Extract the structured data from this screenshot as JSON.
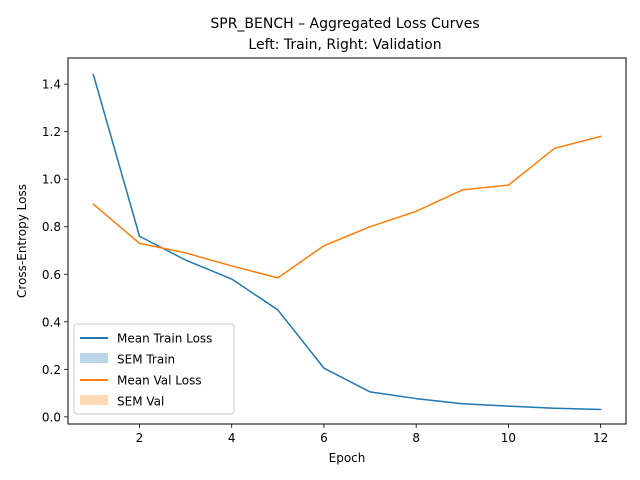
{
  "chart_data": {
    "type": "line",
    "title_line1": "SPR_BENCH – Aggregated Loss Curves",
    "title_line2": "Left: Train, Right: Validation",
    "xlabel": "Epoch",
    "ylabel": "Cross-Entropy Loss",
    "xlim": [
      0.45,
      12.55
    ],
    "ylim": [
      -0.03,
      1.51
    ],
    "xticks": [
      2,
      4,
      6,
      8,
      10,
      12
    ],
    "yticks": [
      0.0,
      0.2,
      0.4,
      0.6,
      0.8,
      1.0,
      1.2,
      1.4
    ],
    "ytick_labels": [
      "0.0",
      "0.2",
      "0.4",
      "0.6",
      "0.8",
      "1.0",
      "1.2",
      "1.4"
    ],
    "x": [
      1,
      2,
      3,
      4,
      5,
      6,
      7,
      8,
      9,
      10,
      11,
      12
    ],
    "series": [
      {
        "name": "Mean Train Loss",
        "color": "#1f77b4",
        "values": [
          1.44,
          0.76,
          0.66,
          0.58,
          0.45,
          0.205,
          0.105,
          0.077,
          0.055,
          0.045,
          0.036,
          0.031
        ]
      },
      {
        "name": "Mean Val Loss",
        "color": "#ff7f0e",
        "values": [
          0.895,
          0.73,
          0.69,
          0.635,
          0.585,
          0.72,
          0.8,
          0.865,
          0.955,
          0.975,
          1.13,
          1.18
        ]
      }
    ],
    "bands": [
      {
        "name": "SEM Train",
        "color": "#1f77b4"
      },
      {
        "name": "SEM Val",
        "color": "#ff7f0e"
      }
    ],
    "legend_position": "lower-left",
    "grid": false
  }
}
